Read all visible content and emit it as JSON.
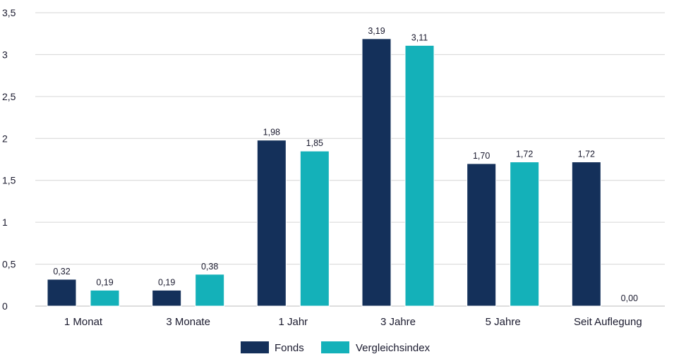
{
  "chart_data": {
    "type": "bar",
    "title": "",
    "xlabel": "",
    "ylabel": "",
    "categories": [
      "1 Monat",
      "3 Monate",
      "1 Jahr",
      "3 Jahre",
      "5 Jahre",
      "Seit Auflegung"
    ],
    "series": [
      {
        "name": "Fonds",
        "color": "#14305a",
        "values": [
          0.32,
          0.19,
          1.98,
          3.19,
          1.7,
          1.72
        ],
        "labels": [
          "0,32",
          "0,19",
          "1,98",
          "3,19",
          "1,70",
          "1,72"
        ]
      },
      {
        "name": "Vergleichsindex",
        "color": "#14b1b9",
        "values": [
          0.19,
          0.38,
          1.85,
          3.11,
          1.72,
          0.0
        ],
        "labels": [
          "0,19",
          "0,38",
          "1,85",
          "3,11",
          "1,72",
          "0,00"
        ]
      }
    ],
    "ylim": [
      0,
      3.5
    ],
    "yticks": [
      0,
      0.5,
      1,
      1.5,
      2,
      2.5,
      3,
      3.5
    ],
    "ytick_labels": [
      "0",
      "0,5",
      "1",
      "1,5",
      "2",
      "2,5",
      "3",
      "3,5"
    ],
    "grid": true,
    "legend_position": "bottom-center"
  }
}
